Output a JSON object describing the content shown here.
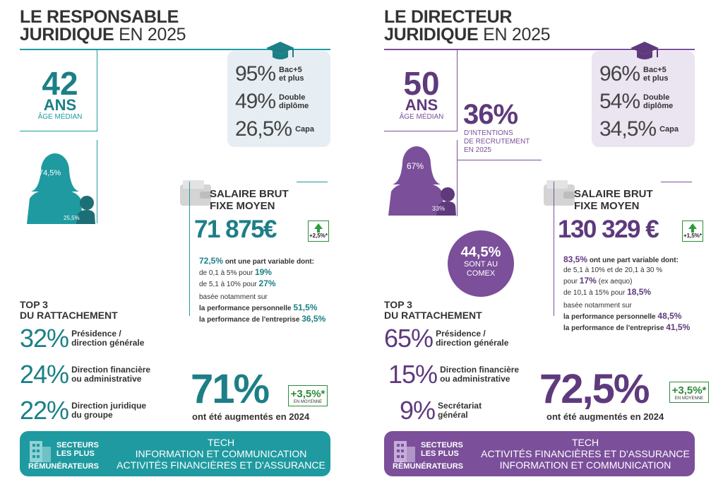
{
  "left": {
    "title_line1": "LE RESPONSABLE",
    "title_line2_bold": "JURIDIQUE",
    "title_line2_thin": "EN 2025",
    "age_value": "42",
    "age_unit": "ANS",
    "age_label": "ÂGE MÉDIAN",
    "education": [
      {
        "pct": "95%",
        "label": "Bac+5 et plus"
      },
      {
        "pct": "49%",
        "label": "Double diplôme"
      },
      {
        "pct": "26,5%",
        "label": "Capa"
      }
    ],
    "gender_women": "74,5%",
    "gender_men": "25,5%",
    "salary_title_1": "SALAIRE BRUT",
    "salary_title_2": "FIXE MOYEN",
    "salary_value": "71 875€",
    "salary_change": "+2,5%*",
    "variable_pct": "72,5%",
    "variable_text": "ont une part variable dont:",
    "variable_lines": [
      {
        "text": "de 0,1 à 5% pour",
        "value": "19%"
      },
      {
        "text": "de 5,1 à 10% pour",
        "value": "27%"
      }
    ],
    "based_on": "basée notamment sur",
    "perf_lines": [
      {
        "text": "la performance personnelle",
        "value": "51,5%"
      },
      {
        "text": "la performance de l'entreprise",
        "value": "36,5%"
      }
    ],
    "top3_title_1": "TOP 3",
    "top3_title_2": "DU RATTACHEMENT",
    "attachment": [
      {
        "pct": "32%",
        "label1": "Présidence /",
        "label2": "direction générale"
      },
      {
        "pct": "24%",
        "label1": "Direction financière",
        "label2": "ou administrative"
      },
      {
        "pct": "22%",
        "label1": "Direction juridique",
        "label2": "du groupe"
      }
    ],
    "raised_pct": "71%",
    "raised_text": "ont été augmentés en 2024",
    "raised_avg": "+3,5%*",
    "raised_avg_label": "EN MOYENNE",
    "sector_label_1": "SECTEURS",
    "sector_label_2": "LES PLUS",
    "sector_label_3": "RÉMUNÉRATEURS",
    "sectors": [
      "TECH",
      "INFORMATION ET COMMUNICATION",
      "ACTIVITÉS FINANCIÈRES ET D'ASSURANCE"
    ]
  },
  "right": {
    "title_line1": "LE DIRECTEUR",
    "title_line2_bold": "JURIDIQUE",
    "title_line2_thin": "EN 2025",
    "age_value": "50",
    "age_unit": "ANS",
    "age_label": "ÂGE MÉDIAN",
    "recruit_pct": "36%",
    "recruit_label_1": "D'INTENTIONS",
    "recruit_label_2": "DE RECRUTEMENT",
    "recruit_label_3": "EN 2025",
    "education": [
      {
        "pct": "96%",
        "label": "Bac+5 et plus"
      },
      {
        "pct": "54%",
        "label": "Double diplôme"
      },
      {
        "pct": "34,5%",
        "label": "Capa"
      }
    ],
    "gender_women": "67%",
    "gender_men": "33%",
    "comex_pct": "44,5%",
    "comex_label_1": "SONT AU",
    "comex_label_2": "COMEX",
    "salary_title_1": "SALAIRE BRUT",
    "salary_title_2": "FIXE MOYEN",
    "salary_value": "130 329 €",
    "salary_change": "+1,5%*",
    "variable_pct": "83,5%",
    "variable_text": "ont une part variable dont:",
    "variable_lines": [
      {
        "text": "de 5,1 à 10% et de 20,1 à 30 %",
        "value": ""
      },
      {
        "text": "pour",
        "value": "17%",
        "suffix": "(ex aequo)"
      },
      {
        "text": "de 10,1 à 15% pour",
        "value": "18,5%"
      }
    ],
    "based_on": "basée notamment sur",
    "perf_lines": [
      {
        "text": "la performance personnelle",
        "value": "48,5%"
      },
      {
        "text": "la performance de l'entreprise",
        "value": "41,5%"
      }
    ],
    "top3_title_1": "TOP 3",
    "top3_title_2": "DU RATTACHEMENT",
    "attachment": [
      {
        "pct": "65%",
        "label1": "Présidence /",
        "label2": "direction générale"
      },
      {
        "pct": "15%",
        "label1": "Direction financière",
        "label2": "ou administrative"
      },
      {
        "pct": "9%",
        "label1": "Secrétariat",
        "label2": "général"
      }
    ],
    "raised_pct": "72,5%",
    "raised_text": "ont été augmentés en 2024",
    "raised_avg": "+3,5%*",
    "raised_avg_label": "EN MOYENNE",
    "sector_label_1": "SECTEURS",
    "sector_label_2": "LES PLUS",
    "sector_label_3": "RÉMUNÉRATEURS",
    "sectors": [
      "TECH",
      "ACTIVITÉS FINANCIÈRES ET D'ASSURANCE",
      "INFORMATION ET COMMUNICATION"
    ]
  },
  "colors": {
    "teal": "#1f9aa0",
    "teal_dark": "#1c7f86",
    "teal_light": "#e6eef3",
    "purple": "#7b4f9a",
    "purple_dark": "#5e3a7d",
    "purple_light": "#ebe4f1",
    "green": "#2e9a3e"
  },
  "icons": [
    "graduation-cap-icon",
    "wallet-icon",
    "woman-man-silhouette-icon",
    "building-icon",
    "arrow-up-icon"
  ]
}
